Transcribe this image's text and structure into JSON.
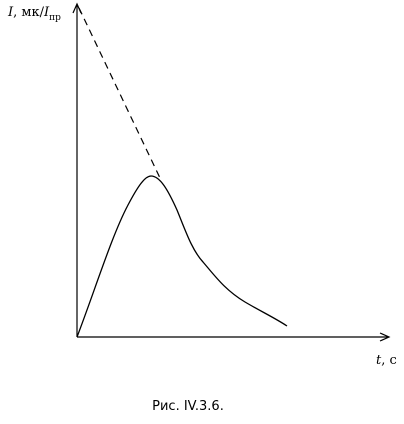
{
  "axes": {
    "y_label": {
      "symbol": "I",
      "unit": ", мк/",
      "ratio_symbol": "I",
      "subscript": "пр"
    },
    "x_label": {
      "symbol": "t",
      "unit": ", с"
    }
  },
  "caption": "Рис. IV.3.6."
}
